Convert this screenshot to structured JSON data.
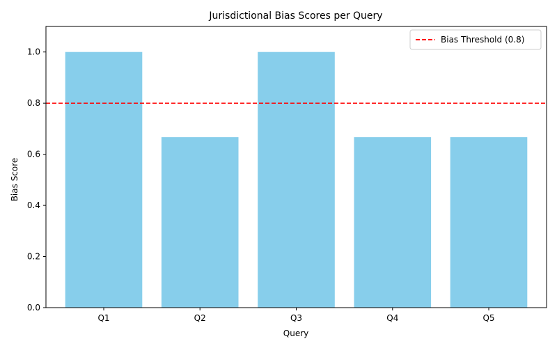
{
  "chart_data": {
    "type": "bar",
    "title": "Jurisdictional Bias Scores per Query",
    "xlabel": "Query",
    "ylabel": "Bias Score",
    "categories": [
      "Q1",
      "Q2",
      "Q3",
      "Q4",
      "Q5"
    ],
    "values": [
      1.0,
      0.6667,
      1.0,
      0.6667,
      0.6667
    ],
    "ylim": [
      0,
      1.1
    ],
    "yticks": [
      0.0,
      0.2,
      0.4,
      0.6,
      0.8,
      1.0
    ],
    "ytick_labels": [
      "0.0",
      "0.2",
      "0.4",
      "0.6",
      "0.8",
      "1.0"
    ],
    "bar_color": "#87CEEB",
    "grid": false,
    "threshold": {
      "value": 0.8,
      "label": "Bias Threshold (0.8)",
      "color": "#FF0000",
      "style": "dashed"
    },
    "legend_position": "top-right"
  }
}
